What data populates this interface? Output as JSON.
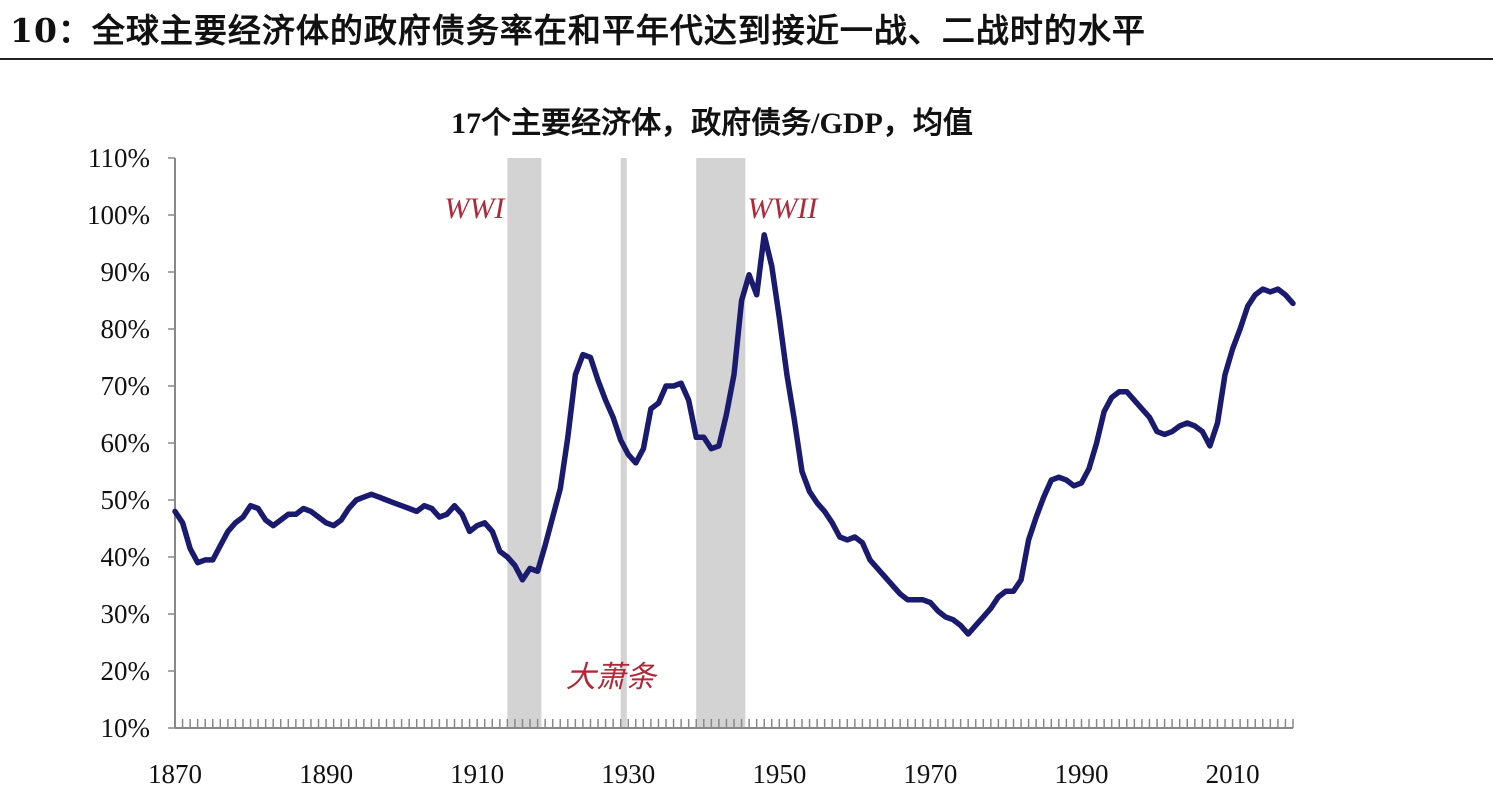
{
  "figure_title": "10：全球主要经济体的政府债务率在和平年代达到接近一战、二战时的水平",
  "chart_data": {
    "type": "line",
    "title": "17个主要经济体，政府债务/GDP，均值",
    "xlabel": "",
    "ylabel": "",
    "x_ticks": [
      "1870",
      "1890",
      "1910",
      "1930",
      "1950",
      "1970",
      "1990",
      "2010"
    ],
    "y_ticks": [
      "10%",
      "20%",
      "30%",
      "40%",
      "50%",
      "60%",
      "70%",
      "80%",
      "90%",
      "100%",
      "110%"
    ],
    "xlim": [
      1870,
      2018
    ],
    "ylim": [
      10,
      110
    ],
    "line_color": "#1a1a6e",
    "shade_color": "#d3d3d3",
    "annotation_color": "#b0283a",
    "shaded_periods": [
      {
        "start": 1914,
        "end": 1918.5,
        "label": "WWI"
      },
      {
        "start": 1929,
        "end": 1929.8,
        "label": "大萧条"
      },
      {
        "start": 1939,
        "end": 1945.5,
        "label": "WWII"
      }
    ],
    "series": [
      {
        "x": [
          1870,
          1871,
          1872,
          1873,
          1874,
          1875,
          1876,
          1877,
          1878,
          1879,
          1880,
          1881,
          1882,
          1883,
          1884,
          1885,
          1886,
          1887,
          1888,
          1889,
          1890,
          1891,
          1892,
          1893,
          1894,
          1895,
          1896,
          1897,
          1898,
          1899,
          1900,
          1901,
          1902,
          1903,
          1904,
          1905,
          1906,
          1907,
          1908,
          1909,
          1910,
          1911,
          1912,
          1913,
          1914,
          1915,
          1916,
          1917,
          1918,
          1919,
          1920,
          1921,
          1922,
          1923,
          1924,
          1925,
          1926,
          1927,
          1928,
          1929,
          1930,
          1931,
          1932,
          1933,
          1934,
          1935,
          1936,
          1937,
          1938,
          1939,
          1940,
          1941,
          1942,
          1943,
          1944,
          1945,
          1946,
          1947,
          1948,
          1949,
          1950,
          1951,
          1952,
          1953,
          1954,
          1955,
          1956,
          1957,
          1958,
          1959,
          1960,
          1961,
          1962,
          1963,
          1964,
          1965,
          1966,
          1967,
          1968,
          1969,
          1970,
          1971,
          1972,
          1973,
          1974,
          1975,
          1976,
          1977,
          1978,
          1979,
          1980,
          1981,
          1982,
          1983,
          1984,
          1985,
          1986,
          1987,
          1988,
          1989,
          1990,
          1991,
          1992,
          1993,
          1994,
          1995,
          1996,
          1997,
          1998,
          1999,
          2000,
          2001,
          2002,
          2003,
          2004,
          2005,
          2006,
          2007,
          2008,
          2009,
          2010,
          2011,
          2012,
          2013,
          2014,
          2015,
          2016,
          2017,
          2018
        ],
        "y": [
          48,
          46,
          41.5,
          39,
          39.5,
          39.5,
          42,
          44.5,
          46,
          47,
          49,
          48.5,
          46.5,
          45.5,
          46.5,
          47.5,
          47.5,
          48.5,
          48,
          47,
          46,
          45.5,
          46.5,
          48.5,
          50,
          50.5,
          51,
          50.5,
          50,
          49.5,
          49,
          48.5,
          48,
          49,
          48.5,
          47,
          47.5,
          49,
          47.5,
          44.5,
          45.5,
          46,
          44.5,
          41,
          40,
          38.5,
          36,
          38,
          37.5,
          42,
          47,
          52,
          61,
          72,
          75.5,
          75,
          71,
          67.5,
          64.5,
          60.5,
          58,
          56.5,
          59,
          66,
          67,
          70,
          70,
          70.5,
          67.5,
          61,
          61,
          59,
          59.5,
          65,
          72,
          85,
          89.5,
          86,
          96.5,
          91,
          82,
          72,
          64,
          55,
          51.5,
          49.5,
          48,
          46,
          43.5,
          43,
          43.5,
          42.5,
          39.5,
          38,
          36.5,
          35,
          33.5,
          32.5,
          32.5,
          32.5,
          32,
          30.5,
          29.5,
          29,
          28,
          26.5,
          28,
          29.5,
          31,
          33,
          34,
          34,
          36,
          43,
          47,
          50.5,
          53.5,
          54,
          53.5,
          52.5,
          53,
          55.5,
          60,
          65.5,
          68,
          69,
          69,
          67.5,
          66,
          64.5,
          62,
          61.5,
          62,
          63,
          63.5,
          63,
          62,
          59.5,
          63.5,
          72,
          76.5,
          80,
          84,
          86,
          87,
          86.5,
          87,
          86,
          84.5
        ]
      }
    ]
  }
}
